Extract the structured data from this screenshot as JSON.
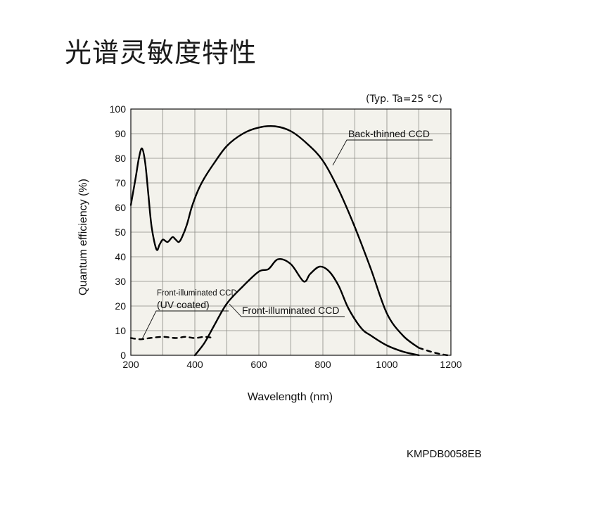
{
  "page": {
    "title": "光谱灵敏度特性",
    "condition": "(Typ. Ta=25 °C)",
    "doc_code": "KMPDB0058EB"
  },
  "chart_data": {
    "type": "line",
    "xlabel": "Wavelength (nm)",
    "ylabel": "Quantum efficiency (%)",
    "xlim": [
      200,
      1200
    ],
    "ylim": [
      0,
      100
    ],
    "x_ticks": [
      200,
      400,
      600,
      800,
      1000,
      1200
    ],
    "y_ticks": [
      0,
      10,
      20,
      30,
      40,
      50,
      60,
      70,
      80,
      90,
      100
    ],
    "grid": true,
    "background": "#f3f2ec",
    "series": [
      {
        "name": "Back-thinned CCD",
        "style": "solid",
        "x": [
          200,
          215,
          225,
          235,
          245,
          255,
          265,
          280,
          290,
          300,
          315,
          330,
          340,
          350,
          360,
          375,
          390,
          410,
          430,
          460,
          500,
          550,
          600,
          650,
          700,
          750,
          800,
          850,
          900,
          950,
          1000,
          1050,
          1100
        ],
        "y": [
          61,
          72,
          80,
          84,
          78,
          65,
          52,
          43,
          45,
          47,
          46,
          48,
          47,
          46,
          48,
          53,
          60,
          67,
          72,
          78,
          85,
          90,
          92.5,
          93,
          91,
          86,
          79,
          67,
          52,
          35,
          17,
          8,
          3
        ]
      },
      {
        "name": "Back-thinned CCD (extension)",
        "style": "dashed",
        "x": [
          1100,
          1150,
          1190
        ],
        "y": [
          3,
          1,
          0
        ]
      },
      {
        "name": "Front-illuminated CCD",
        "style": "solid",
        "x": [
          400,
          430,
          460,
          500,
          550,
          600,
          630,
          660,
          700,
          740,
          760,
          790,
          820,
          850,
          880,
          920,
          950,
          1000,
          1050,
          1100
        ],
        "y": [
          0,
          5,
          12,
          21,
          28,
          34,
          35,
          39,
          37,
          30,
          33,
          36,
          34,
          28,
          19,
          11,
          8,
          4,
          1.5,
          0
        ]
      },
      {
        "name": "Front-illuminated CCD (UV coated)",
        "style": "dashed",
        "x": [
          200,
          230,
          260,
          300,
          340,
          370,
          400,
          430,
          460
        ],
        "y": [
          7,
          6.5,
          7,
          7.5,
          7,
          7.5,
          7,
          7.5,
          7
        ]
      }
    ],
    "annotations": [
      {
        "text": "Back-thinned CCD"
      },
      {
        "text": "Front-illuminated CCD"
      },
      {
        "text": "Front-illuminated CCD"
      },
      {
        "text": "(UV coated)"
      }
    ]
  }
}
